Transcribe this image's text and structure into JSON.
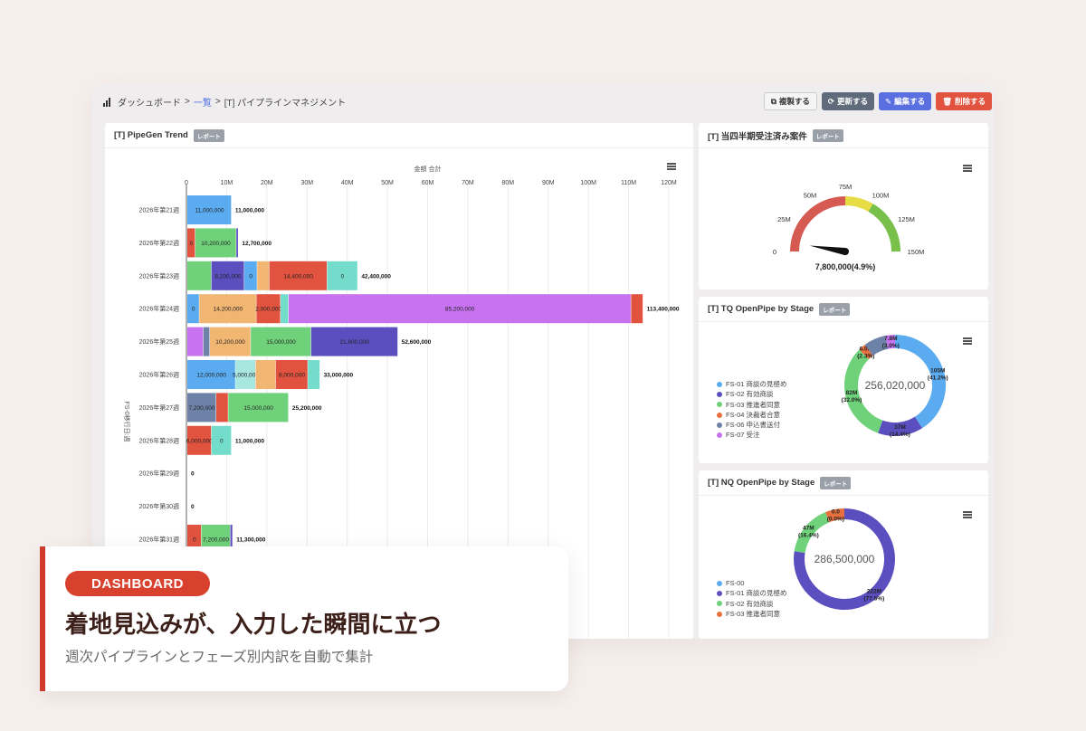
{
  "breadcrumb": {
    "home": "ダッシュボード",
    "list": "一覧",
    "current": "[T] パイプラインマネジメント",
    "sep": ">"
  },
  "actions": {
    "copy": "複製する",
    "update": "更新する",
    "edit": "編集する",
    "delete": "削除する"
  },
  "pipegen": {
    "title": "[T] PipeGen Trend",
    "tag": "レポート",
    "chart_data": {
      "type": "bar",
      "orientation": "horizontal",
      "stacked": true,
      "title": "",
      "xlabel": "金額 合計",
      "ylabel": "FS-0移行日:週",
      "xlim": [
        0,
        120000000
      ],
      "x_ticks": [
        "0",
        "10M",
        "20M",
        "30M",
        "40M",
        "50M",
        "60M",
        "70M",
        "80M",
        "90M",
        "100M",
        "110M",
        "120M"
      ],
      "grid": true,
      "categories": [
        "2026年第21週",
        "2026年第22週",
        "2026年第23週",
        "2026年第24週",
        "2026年第25週",
        "2026年第26週",
        "2026年第27週",
        "2026年第28週",
        "2026年第29週",
        "2026年第30週",
        "2026年第31週"
      ],
      "colors": [
        "#5aabf0",
        "#e2533f",
        "#6fd27a",
        "#5b4fc0",
        "#f2b673",
        "#74dccb",
        "#c773f0",
        "#6e82a8",
        "#a8e6e0"
      ],
      "rows": [
        {
          "total": "11,000,000",
          "segments": [
            {
              "value": 11000000,
              "color": 0,
              "label": "11,000,000"
            }
          ]
        },
        {
          "total": "12,700,000",
          "segments": [
            {
              "value": 2000000,
              "color": 1,
              "label": "0"
            },
            {
              "value": 10200000,
              "color": 2,
              "label": "10,200,000"
            },
            {
              "value": 500000,
              "color": 3,
              "label": ""
            }
          ]
        },
        {
          "total": "42,400,000",
          "segments": [
            {
              "value": 6000000,
              "color": 2,
              "label": ""
            },
            {
              "value": 8200000,
              "color": 3,
              "label": "8,200,000"
            },
            {
              "value": 3200000,
              "color": 0,
              "label": "0"
            },
            {
              "value": 3000000,
              "color": 4,
              "label": ""
            },
            {
              "value": 14400000,
              "color": 1,
              "label": "14,400,000"
            },
            {
              "value": 7600000,
              "color": 5,
              "label": "0"
            }
          ]
        },
        {
          "total": "113,400,000",
          "segments": [
            {
              "value": 3000000,
              "color": 0,
              "label": "0"
            },
            {
              "value": 14200000,
              "color": 4,
              "label": "14,200,000"
            },
            {
              "value": 6000000,
              "color": 1,
              "label": "2,000,000"
            },
            {
              "value": 2000000,
              "color": 5,
              "label": ""
            },
            {
              "value": 85200000,
              "color": 6,
              "label": "85,200,000"
            },
            {
              "value": 3000000,
              "color": 1,
              "label": ""
            }
          ]
        },
        {
          "total": "52,600,000",
          "segments": [
            {
              "value": 4000000,
              "color": 6,
              "label": ""
            },
            {
              "value": 1600000,
              "color": 7,
              "label": ""
            },
            {
              "value": 10200000,
              "color": 4,
              "label": "10,200,000"
            },
            {
              "value": 15000000,
              "color": 2,
              "label": "15,000,000"
            },
            {
              "value": 21600000,
              "color": 3,
              "label": "21,600,000"
            }
          ]
        },
        {
          "total": "33,000,000",
          "segments": [
            {
              "value": 12000000,
              "color": 0,
              "label": "12,000,000"
            },
            {
              "value": 5000000,
              "color": 8,
              "label": "5,000,000"
            },
            {
              "value": 5000000,
              "color": 4,
              "label": ""
            },
            {
              "value": 8000000,
              "color": 1,
              "label": "8,000,000"
            },
            {
              "value": 3000000,
              "color": 5,
              "label": ""
            }
          ]
        },
        {
          "total": "25,200,000",
          "segments": [
            {
              "value": 7200000,
              "color": 7,
              "label": "7,200,000"
            },
            {
              "value": 3000000,
              "color": 1,
              "label": ""
            },
            {
              "value": 15000000,
              "color": 2,
              "label": "15,000,000"
            }
          ]
        },
        {
          "total": "11,000,000",
          "segments": [
            {
              "value": 6000000,
              "color": 1,
              "label": "6,000,000"
            },
            {
              "value": 5000000,
              "color": 5,
              "label": "0"
            }
          ]
        },
        {
          "total": "0",
          "segments": []
        },
        {
          "total": "0",
          "segments": []
        },
        {
          "total": "11,300,000",
          "segments": [
            {
              "value": 3500000,
              "color": 1,
              "label": "0"
            },
            {
              "value": 7200000,
              "color": 2,
              "label": "7,200,000"
            },
            {
              "value": 600000,
              "color": 3,
              "label": ""
            }
          ]
        }
      ]
    }
  },
  "gauge": {
    "title": "[T] 当四半期受注済み案件",
    "tag": "レポート",
    "chart_data": {
      "type": "gauge",
      "min": 0,
      "max": 150000000,
      "value": 7800000,
      "value_label": "7,800,000(4.9%)",
      "tick_labels": [
        "0",
        "25M",
        "50M",
        "75M",
        "100M",
        "125M",
        "150M"
      ],
      "bands": [
        {
          "from": 0,
          "to": 75000000,
          "color": "#d55a52"
        },
        {
          "from": 75000000,
          "to": 100000000,
          "color": "#e8dc45"
        },
        {
          "from": 100000000,
          "to": 150000000,
          "color": "#78c04a"
        }
      ]
    }
  },
  "tq": {
    "title": "[T] TQ OpenPipe by Stage",
    "tag": "レポート",
    "chart_data": {
      "type": "pie",
      "donut": true,
      "center_label": "256,020,000",
      "slices": [
        {
          "name": "FS-01 商談の見極め",
          "value": 105,
          "color": "#5aabf0",
          "label": "105M",
          "pct": "(41.2%)"
        },
        {
          "name": "FS-02 有効商談",
          "value": 37,
          "color": "#5b4fc0",
          "label": "37M",
          "pct": "(14.4%)"
        },
        {
          "name": "FS-03 推進者同意",
          "value": 82,
          "color": "#6fd27a",
          "label": "82M",
          "pct": "(32.0%)"
        },
        {
          "name": "FS-04 決裁者合意",
          "value": 6,
          "color": "#e8703f",
          "label": "6.0M",
          "pct": "(2.3%)"
        },
        {
          "name": "FS-06 申込書送付",
          "value": 18.2,
          "color": "#6e82a8",
          "label": "",
          "pct": ""
        },
        {
          "name": "FS-07 受注",
          "value": 7.8,
          "color": "#c773f0",
          "label": "7.8M",
          "pct": "(3.0%)"
        }
      ]
    }
  },
  "nq": {
    "title": "[T] NQ OpenPipe by Stage",
    "tag": "レポート",
    "chart_data": {
      "type": "pie",
      "donut": true,
      "center_label": "286,500,000",
      "slices": [
        {
          "name": "FS-00",
          "value": 0,
          "color": "#5aabf0",
          "label": "",
          "pct": ""
        },
        {
          "name": "FS-01 商談の見極め",
          "value": 222,
          "color": "#5b4fc0",
          "label": "222M",
          "pct": "(77.5%)"
        },
        {
          "name": "FS-02 有効商談",
          "value": 47,
          "color": "#6fd27a",
          "label": "47M",
          "pct": "(16.4%)"
        },
        {
          "name": "FS-03 推進者同意",
          "value": 17.5,
          "color": "#e8703f",
          "label": "0.0",
          "pct": "(0.0%)"
        }
      ]
    }
  },
  "promo": {
    "badge": "DASHBOARD",
    "headline": "着地見込みが、入力した瞬間に立つ",
    "sub": "週次パイプラインとフェーズ別内訳を自動で集計"
  }
}
